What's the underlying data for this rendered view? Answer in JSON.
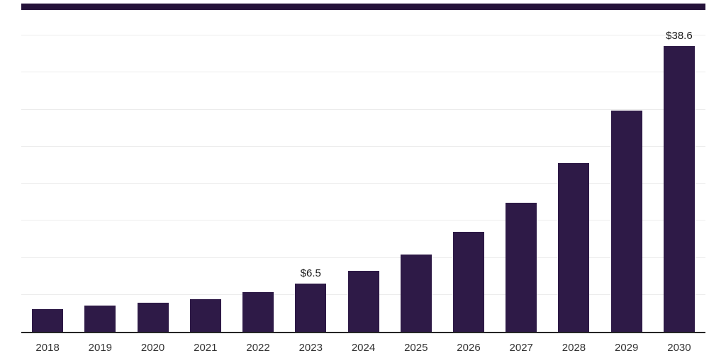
{
  "chart_data": {
    "type": "bar",
    "title": "",
    "xlabel": "",
    "ylabel": "",
    "categories": [
      "2018",
      "2019",
      "2020",
      "2021",
      "2022",
      "2023",
      "2024",
      "2025",
      "2026",
      "2027",
      "2028",
      "2029",
      "2030"
    ],
    "values": [
      3.1,
      3.5,
      3.9,
      4.4,
      5.4,
      6.5,
      8.2,
      10.4,
      13.5,
      17.4,
      22.8,
      29.9,
      38.6
    ],
    "data_labels": [
      "",
      "",
      "",
      "",
      "",
      "$6.5",
      "",
      "",
      "",
      "",
      "",
      "",
      "$38.6"
    ],
    "ylim": [
      0,
      40
    ],
    "grid_step": 5,
    "grid": "horizontal",
    "legend_position": "none",
    "bar_color": "#2E1A47",
    "top_strip_color": "#241239",
    "grid_color": "#ececec",
    "axis_line_color": "#262626",
    "data_label_color": "#1a1a1a",
    "tick_label_color": "#333333"
  }
}
